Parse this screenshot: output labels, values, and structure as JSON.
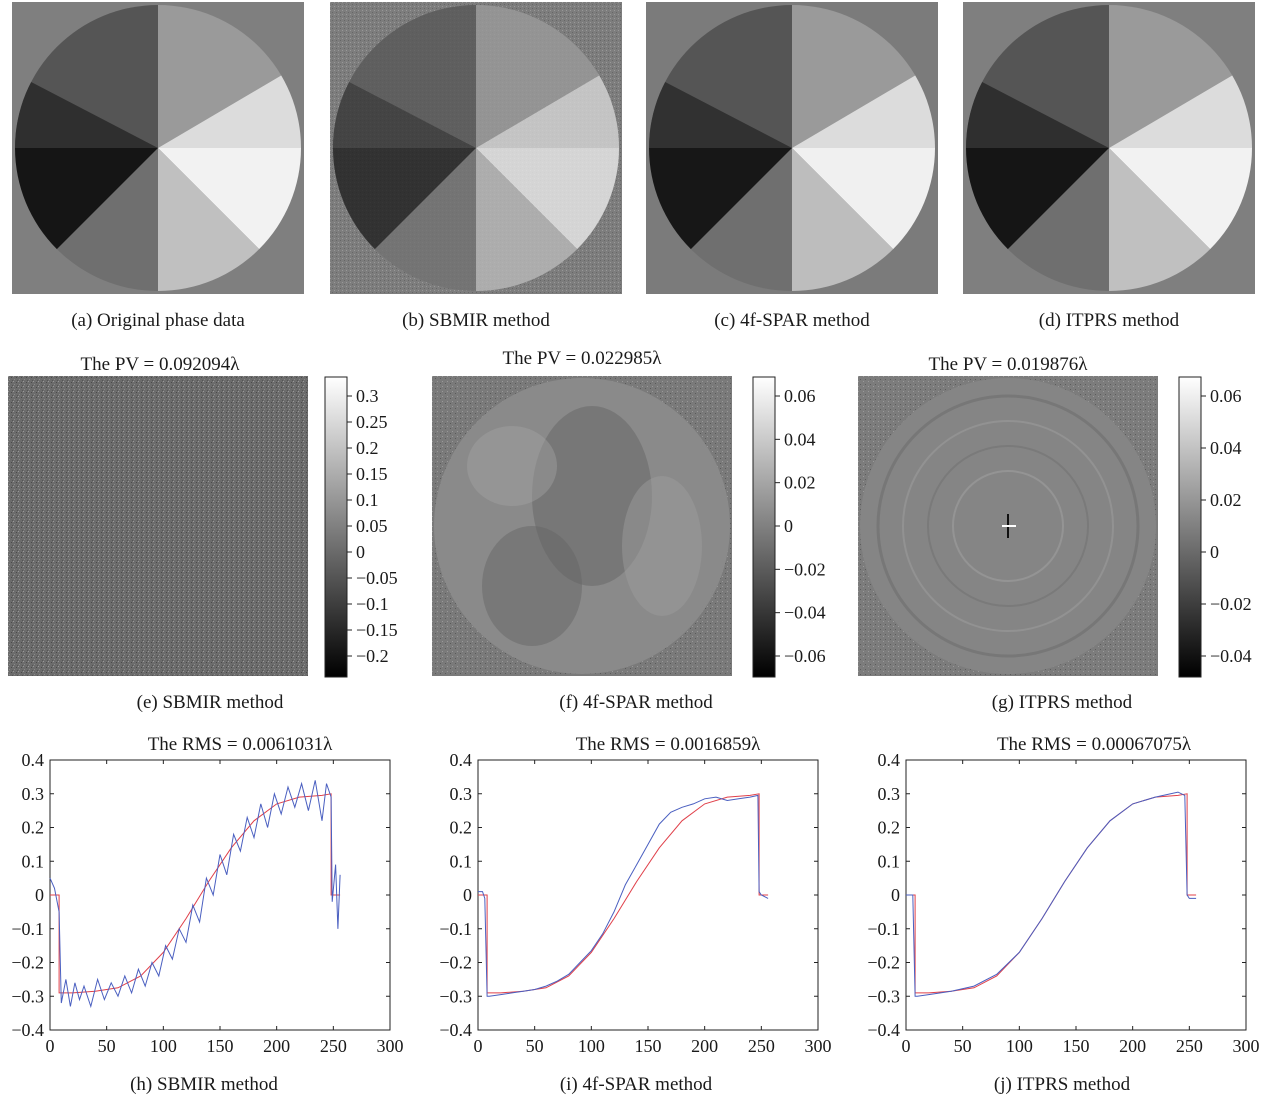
{
  "row1": {
    "captions": [
      "(a)  Original phase data",
      "(b)  SBMIR method",
      "(c)  4f-SPAR method",
      "(d)  ITPRS method"
    ]
  },
  "row2": {
    "panels": [
      {
        "title": "The PV = 0.092094λ",
        "caption": "(e)  SBMIR method",
        "colorbar_ticks": [
          "0.3",
          "0.25",
          "0.2",
          "0.15",
          "0.1",
          "0.05",
          "0",
          "−0.05",
          "−0.1",
          "−0.15",
          "−0.2"
        ]
      },
      {
        "title": "The PV = 0.022985λ",
        "caption": "(f)  4f-SPAR method",
        "colorbar_ticks": [
          "0.06",
          "0.04",
          "0.02",
          "0",
          "−0.02",
          "−0.04",
          "−0.06"
        ]
      },
      {
        "title": "The PV = 0.019876λ",
        "caption": "(g)  ITPRS method",
        "colorbar_ticks": [
          "0.06",
          "0.04",
          "0.02",
          "0",
          "−0.02",
          "−0.04"
        ]
      }
    ]
  },
  "row3": {
    "panels": [
      {
        "title": "The RMS = 0.0061031λ",
        "caption": "(h)  SBMIR method"
      },
      {
        "title": "The RMS = 0.0016859λ",
        "caption": "(i)  4f-SPAR method"
      },
      {
        "title": "The RMS = 0.00067075λ",
        "caption": "(j)  ITPRS method"
      }
    ]
  },
  "chart_data": [
    {
      "type": "line",
      "title": "The RMS = 0.0061031λ",
      "xlim": [
        0,
        300
      ],
      "ylim": [
        -0.4,
        0.4
      ],
      "xticks": [
        0,
        50,
        100,
        150,
        200,
        250,
        300
      ],
      "yticks": [
        -0.4,
        -0.3,
        -0.2,
        -0.1,
        0,
        0.1,
        0.2,
        0.3,
        0.4
      ],
      "series": [
        {
          "color": "#e0404a",
          "x": [
            0,
            8,
            8,
            20,
            40,
            60,
            80,
            100,
            120,
            140,
            160,
            180,
            200,
            220,
            240,
            248,
            248,
            256
          ],
          "y": [
            0,
            0,
            -0.29,
            -0.29,
            -0.285,
            -0.275,
            -0.24,
            -0.17,
            -0.07,
            0.04,
            0.14,
            0.22,
            0.27,
            0.29,
            0.295,
            0.3,
            0,
            0
          ]
        },
        {
          "color": "#4a5fc0",
          "x": [
            0,
            4,
            8,
            10,
            14,
            18,
            22,
            26,
            30,
            36,
            42,
            48,
            54,
            60,
            66,
            72,
            78,
            84,
            90,
            96,
            102,
            108,
            114,
            120,
            126,
            132,
            138,
            144,
            150,
            156,
            162,
            168,
            174,
            180,
            186,
            192,
            198,
            204,
            210,
            216,
            222,
            228,
            234,
            240,
            244,
            248,
            249,
            252,
            254,
            256
          ],
          "y": [
            0.05,
            0.02,
            -0.05,
            -0.32,
            -0.25,
            -0.33,
            -0.26,
            -0.31,
            -0.27,
            -0.33,
            -0.25,
            -0.31,
            -0.26,
            -0.3,
            -0.24,
            -0.29,
            -0.22,
            -0.27,
            -0.2,
            -0.24,
            -0.15,
            -0.19,
            -0.1,
            -0.14,
            -0.03,
            -0.08,
            0.05,
            0.0,
            0.12,
            0.06,
            0.18,
            0.13,
            0.23,
            0.17,
            0.27,
            0.2,
            0.3,
            0.24,
            0.32,
            0.26,
            0.33,
            0.25,
            0.34,
            0.22,
            0.33,
            0.29,
            -0.02,
            0.09,
            -0.1,
            0.06
          ]
        }
      ]
    },
    {
      "type": "line",
      "title": "The RMS = 0.0016859λ",
      "xlim": [
        0,
        300
      ],
      "ylim": [
        -0.4,
        0.4
      ],
      "xticks": [
        0,
        50,
        100,
        150,
        200,
        250,
        300
      ],
      "yticks": [
        -0.4,
        -0.3,
        -0.2,
        -0.1,
        0,
        0.1,
        0.2,
        0.3,
        0.4
      ],
      "series": [
        {
          "color": "#e0404a",
          "x": [
            0,
            8,
            8,
            20,
            40,
            60,
            80,
            100,
            120,
            140,
            160,
            180,
            200,
            220,
            240,
            248,
            248,
            256
          ],
          "y": [
            0,
            0,
            -0.29,
            -0.29,
            -0.285,
            -0.275,
            -0.24,
            -0.17,
            -0.07,
            0.04,
            0.14,
            0.22,
            0.27,
            0.29,
            0.295,
            0.3,
            0,
            0
          ]
        },
        {
          "color": "#4a5fc0",
          "x": [
            0,
            4,
            6,
            8,
            10,
            20,
            30,
            40,
            50,
            60,
            70,
            80,
            90,
            100,
            110,
            120,
            130,
            140,
            150,
            160,
            170,
            180,
            190,
            200,
            210,
            220,
            230,
            240,
            247,
            248,
            250,
            256
          ],
          "y": [
            0.01,
            0.01,
            -0.01,
            -0.3,
            -0.3,
            -0.295,
            -0.29,
            -0.285,
            -0.28,
            -0.27,
            -0.255,
            -0.235,
            -0.2,
            -0.165,
            -0.115,
            -0.05,
            0.03,
            0.09,
            0.15,
            0.21,
            0.245,
            0.26,
            0.27,
            0.285,
            0.29,
            0.28,
            0.285,
            0.29,
            0.295,
            0.01,
            0.0,
            -0.01
          ]
        }
      ]
    },
    {
      "type": "line",
      "title": "The RMS = 0.00067075λ",
      "xlim": [
        0,
        300
      ],
      "ylim": [
        -0.4,
        0.4
      ],
      "xticks": [
        0,
        50,
        100,
        150,
        200,
        250,
        300
      ],
      "yticks": [
        -0.4,
        -0.3,
        -0.2,
        -0.1,
        0,
        0.1,
        0.2,
        0.3,
        0.4
      ],
      "series": [
        {
          "color": "#e0404a",
          "x": [
            0,
            8,
            8,
            20,
            40,
            60,
            80,
            100,
            120,
            140,
            160,
            180,
            200,
            220,
            240,
            248,
            248,
            256
          ],
          "y": [
            0,
            0,
            -0.29,
            -0.29,
            -0.285,
            -0.275,
            -0.24,
            -0.17,
            -0.07,
            0.04,
            0.14,
            0.22,
            0.27,
            0.29,
            0.295,
            0.3,
            0,
            0
          ]
        },
        {
          "color": "#4a5fc0",
          "x": [
            0,
            6,
            8,
            10,
            20,
            40,
            60,
            80,
            100,
            120,
            140,
            160,
            180,
            200,
            220,
            240,
            246,
            248,
            250,
            256
          ],
          "y": [
            0.0,
            0.0,
            -0.3,
            -0.3,
            -0.295,
            -0.285,
            -0.27,
            -0.235,
            -0.17,
            -0.07,
            0.04,
            0.14,
            0.22,
            0.27,
            0.29,
            0.305,
            0.295,
            0.0,
            -0.01,
            -0.01
          ]
        }
      ]
    }
  ]
}
